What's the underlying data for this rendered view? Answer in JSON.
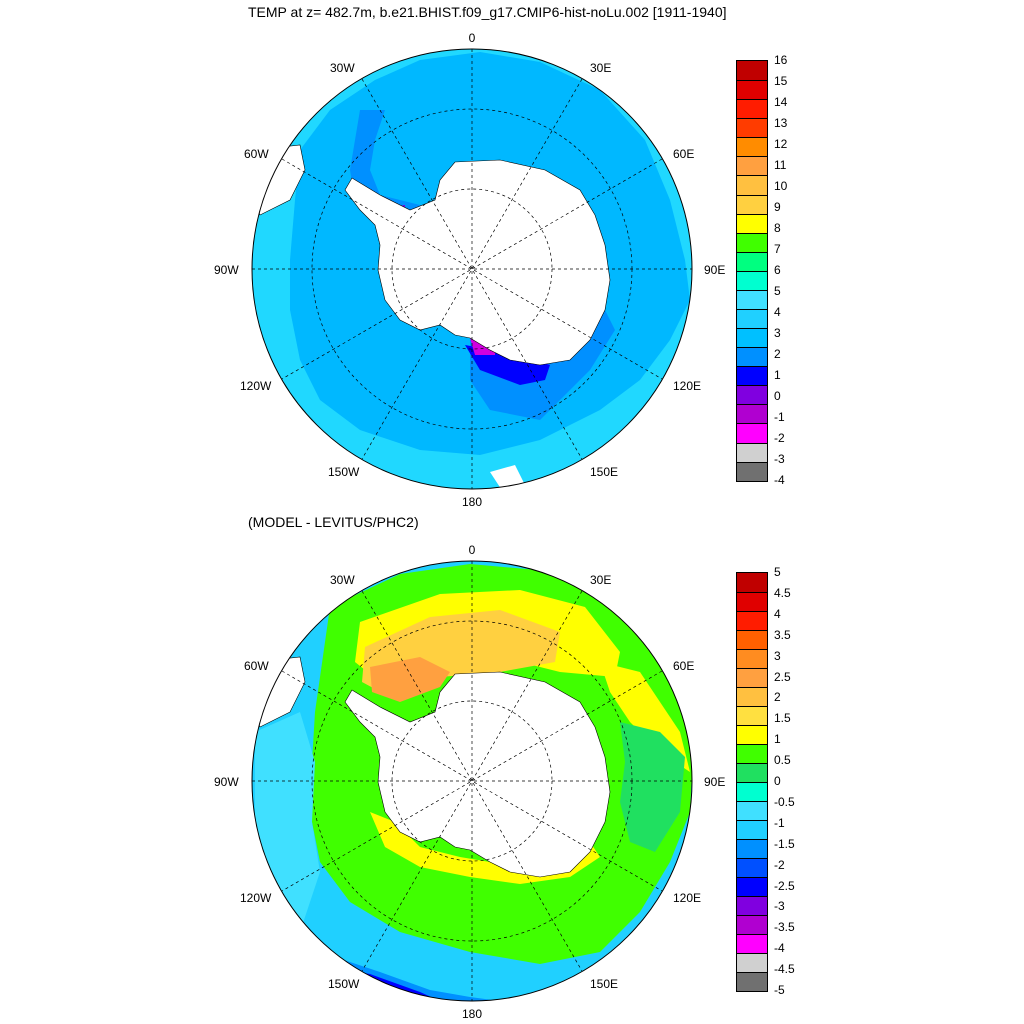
{
  "top_panel": {
    "title": "TEMP at z= 482.7m, b.e21.BHIST.f09_g17.CMIP6-hist-noLu.002 [1911-1940]",
    "colorbar": {
      "labels": [
        "16",
        "15",
        "14",
        "13",
        "12",
        "11",
        "10",
        "9",
        "8",
        "7",
        "6",
        "5",
        "4",
        "3",
        "2",
        "1",
        "0",
        "-1",
        "-2",
        "-3",
        "-4"
      ],
      "colors": [
        "#c00000",
        "#e00000",
        "#ff1c00",
        "#ff3c00",
        "#ff8c00",
        "#ffa040",
        "#ffc040",
        "#ffd040",
        "#ffff00",
        "#40ff00",
        "#00ff80",
        "#00ffd0",
        "#40e0ff",
        "#20d0ff",
        "#00c0ff",
        "#0090ff",
        "#0000ff",
        "#8000e0",
        "#b000d0",
        "#ff00ff",
        "#d0d0d0",
        "#707070"
      ]
    }
  },
  "bottom_panel": {
    "title": "(MODEL - LEVITUS/PHC2)",
    "colorbar": {
      "labels": [
        "5",
        "4.5",
        "4",
        "3.5",
        "3",
        "2.5",
        "2",
        "1.5",
        "1",
        "0.5",
        "0",
        "-0.5",
        "-1",
        "-1.5",
        "-2",
        "-2.5",
        "-3",
        "-3.5",
        "-4",
        "-4.5",
        "-5"
      ],
      "colors": [
        "#c00000",
        "#e00000",
        "#ff1c00",
        "#ff6000",
        "#ff8c20",
        "#ffa040",
        "#ffc040",
        "#ffe040",
        "#ffff00",
        "#40ff00",
        "#20e060",
        "#00ffd0",
        "#40e0ff",
        "#20d0ff",
        "#0090ff",
        "#0050ff",
        "#0000ff",
        "#8000e0",
        "#b000d0",
        "#ff00ff",
        "#d0d0d0",
        "#707070"
      ]
    }
  },
  "lon_labels": {
    "deg0": "0",
    "e30": "30E",
    "e60": "60E",
    "e90": "90E",
    "e120": "120E",
    "e150": "150E",
    "deg180": "180",
    "w150": "150W",
    "w120": "120W",
    "w90": "90W",
    "w60": "60W",
    "w30": "30W"
  },
  "fill_colors": {
    "land": "#ffffff",
    "ocean_t2to3": "#00b8ff",
    "ocean_t3to4": "#20d8ff",
    "ocean_t1to2": "#0090ff",
    "ocean_t0to1": "#0000ff",
    "ocean_tm1to0": "#8000e0",
    "ocean_tm2tom1": "#d000e0",
    "diff_0p5to1": "#40ff00",
    "diff_1to1p5": "#ffff00",
    "diff_1p5to2": "#ffd040",
    "diff_2to2p5": "#ffa040",
    "diff_0to0p5": "#20e060",
    "diff_m0p5to0": "#00ffd0",
    "diff_m1tom0p5": "#40e0ff",
    "diff_m1p5tom1": "#20d0ff",
    "diff_m2tom1p5": "#0090ff",
    "diff_m3tom2p5": "#0000ff"
  }
}
